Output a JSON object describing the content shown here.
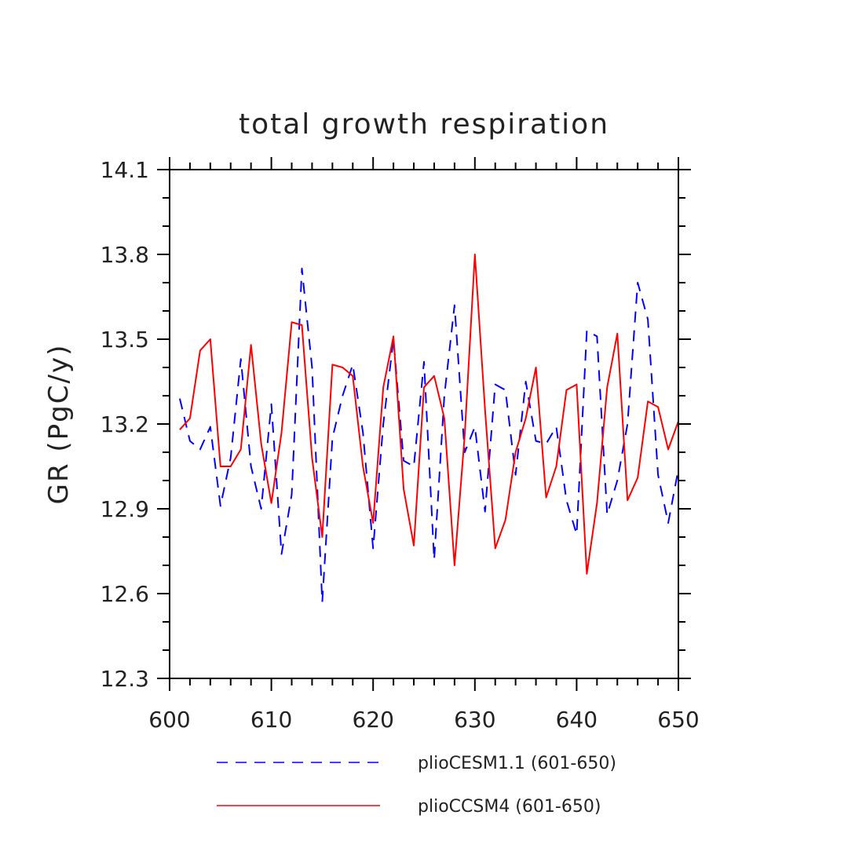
{
  "chart_data": {
    "type": "line",
    "title": "total growth respiration",
    "xlabel": "",
    "ylabel": "GR  (PgC/y)",
    "xlim": [
      600,
      650
    ],
    "ylim": [
      12.3,
      14.1
    ],
    "x_ticks": [
      600,
      610,
      620,
      630,
      640,
      650
    ],
    "x_tick_labels": [
      "600",
      "610",
      "620",
      "630",
      "640",
      "650"
    ],
    "y_ticks": [
      12.3,
      12.6,
      12.9,
      13.2,
      13.5,
      13.8,
      14.1
    ],
    "y_tick_labels": [
      "12.3",
      "12.6",
      "12.9",
      "13.2",
      "13.5",
      "13.8",
      "14.1"
    ],
    "legend_position": "bottom",
    "x": [
      601,
      602,
      603,
      604,
      605,
      606,
      607,
      608,
      609,
      610,
      611,
      612,
      613,
      614,
      615,
      616,
      617,
      618,
      619,
      620,
      621,
      622,
      623,
      624,
      625,
      626,
      627,
      628,
      629,
      630,
      631,
      632,
      633,
      634,
      635,
      636,
      637,
      638,
      639,
      640,
      641,
      642,
      643,
      644,
      645,
      646,
      647,
      648,
      649,
      650
    ],
    "series": [
      {
        "name": "plioCESM1.1 (601-650)",
        "color": "#0000ff",
        "style": "dashed",
        "values": [
          13.29,
          13.14,
          13.11,
          13.19,
          12.91,
          13.08,
          13.43,
          13.05,
          12.9,
          13.27,
          12.74,
          12.95,
          13.75,
          13.4,
          12.57,
          13.15,
          13.3,
          13.41,
          13.17,
          12.76,
          13.2,
          13.5,
          13.07,
          13.05,
          13.42,
          12.72,
          13.3,
          13.62,
          13.1,
          13.19,
          12.89,
          13.34,
          13.32,
          13.02,
          13.35,
          13.14,
          13.13,
          13.19,
          12.93,
          12.81,
          13.53,
          13.51,
          12.88,
          13.0,
          13.2,
          13.7,
          13.57,
          13.02,
          12.85,
          13.04
        ]
      },
      {
        "name": "plioCCSM4 (601-650)",
        "color": "#ff0000",
        "style": "solid",
        "values": [
          13.18,
          13.22,
          13.46,
          13.5,
          13.05,
          13.05,
          13.11,
          13.48,
          13.13,
          12.92,
          13.17,
          13.56,
          13.55,
          13.08,
          12.8,
          13.41,
          13.4,
          13.37,
          13.05,
          12.85,
          13.33,
          13.51,
          12.97,
          12.77,
          13.33,
          13.37,
          13.22,
          12.7,
          13.16,
          13.8,
          13.25,
          12.76,
          12.86,
          13.1,
          13.22,
          13.4,
          12.94,
          13.05,
          13.32,
          13.34,
          12.67,
          12.92,
          13.33,
          13.52,
          12.93,
          13.01,
          13.28,
          13.26,
          13.11,
          13.21
        ]
      }
    ]
  }
}
